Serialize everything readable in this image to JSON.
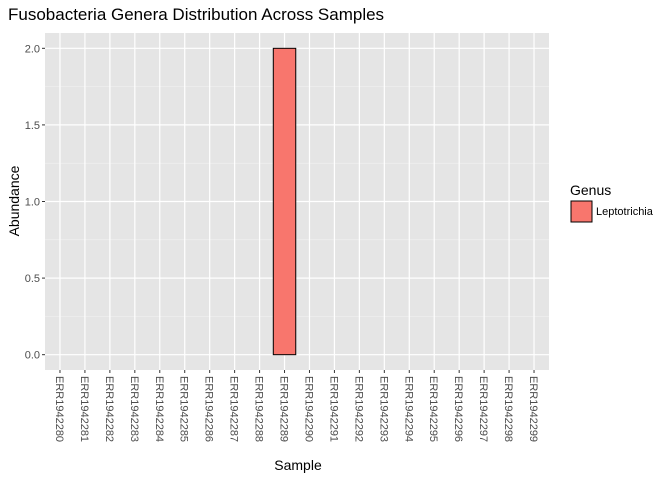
{
  "chart_data": {
    "type": "bar",
    "title": "Fusobacteria Genera Distribution Across Samples",
    "xlabel": "Sample",
    "ylabel": "Abundance",
    "ylim": [
      -0.1,
      2.1
    ],
    "yticks": [
      0.0,
      0.5,
      1.0,
      1.5,
      2.0
    ],
    "ytick_labels": [
      "0.0",
      "0.5",
      "1.0",
      "1.5",
      "2.0"
    ],
    "categories": [
      "ERR1942280",
      "ERR1942281",
      "ERR1942282",
      "ERR1942283",
      "ERR1942284",
      "ERR1942285",
      "ERR1942286",
      "ERR1942287",
      "ERR1942288",
      "ERR1942289",
      "ERR1942290",
      "ERR1942291",
      "ERR1942292",
      "ERR1942293",
      "ERR1942294",
      "ERR1942295",
      "ERR1942296",
      "ERR1942297",
      "ERR1942298",
      "ERR1942299"
    ],
    "series": [
      {
        "name": "Leptotrichia",
        "color": "#f8766d",
        "values": [
          0,
          0,
          0,
          0,
          0,
          0,
          0,
          0,
          0,
          2,
          0,
          0,
          0,
          0,
          0,
          0,
          0,
          0,
          0,
          0
        ]
      }
    ],
    "legend": {
      "title": "Genus",
      "position": "right"
    },
    "grid": true,
    "panel_color": "#e5e5e5"
  }
}
